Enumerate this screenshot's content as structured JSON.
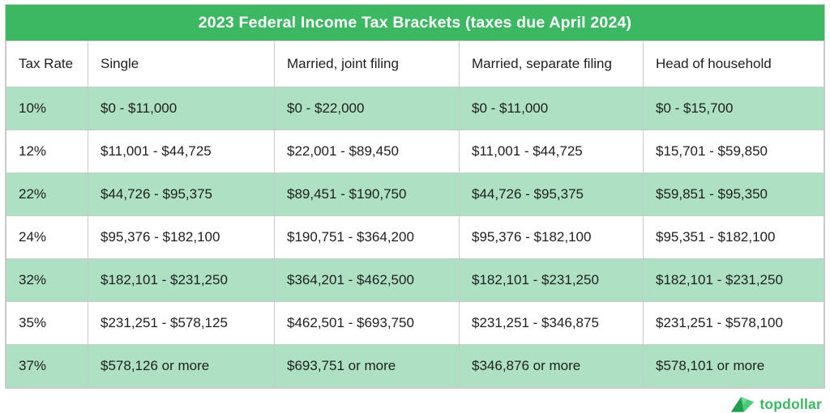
{
  "title": "2023 Federal Income Tax Brackets (taxes due April 2024)",
  "chart_data": {
    "type": "table",
    "title": "2023 Federal Income Tax Brackets (taxes due April 2024)",
    "columns": [
      "Tax Rate",
      "Single",
      "Married, joint filing",
      "Married, separate filing",
      "Head of household"
    ],
    "rows": [
      [
        "10%",
        "$0 - $11,000",
        "$0 - $22,000",
        "$0 - $11,000",
        "$0 - $15,700"
      ],
      [
        "12%",
        "$11,001 - $44,725",
        "$22,001 - $89,450",
        "$11,001 - $44,725",
        "$15,701 - $59,850"
      ],
      [
        "22%",
        "$44,726 - $95,375",
        "$89,451 - $190,750",
        "$44,726 - $95,375",
        "$59,851 - $95,350"
      ],
      [
        "24%",
        "$95,376 - $182,100",
        "$190,751 - $364,200",
        "$95,376 - $182,100",
        "$95,351 - $182,100"
      ],
      [
        "32%",
        "$182,101 - $231,250",
        "$364,201 - $462,500",
        "$182,101 - $231,250",
        "$182,101 - $231,250"
      ],
      [
        "35%",
        "$231,251 - $578,125",
        "$462,501 - $693,750",
        "$231,251 - $346,875",
        "$231,251 - $578,100"
      ],
      [
        "37%",
        "$578,126 or more",
        "$693,751 or more",
        "$346,876 or more",
        "$578,101 or more"
      ]
    ],
    "layout": {
      "row_stripe_pattern": "odd rows green, even rows white",
      "grid": true
    }
  },
  "logo": {
    "text": "topdollar"
  },
  "colors": {
    "title_bar_green": "#3cb863",
    "row_green": "#aee1c4",
    "row_white": "#ffffff",
    "border_gray": "#c9c9c9",
    "text_dark": "#1e1e1e",
    "title_text": "#ffffff",
    "logo_green": "#3cb863",
    "logo_icon_dark": "#1f9e50",
    "logo_icon_light": "#4bc878"
  }
}
